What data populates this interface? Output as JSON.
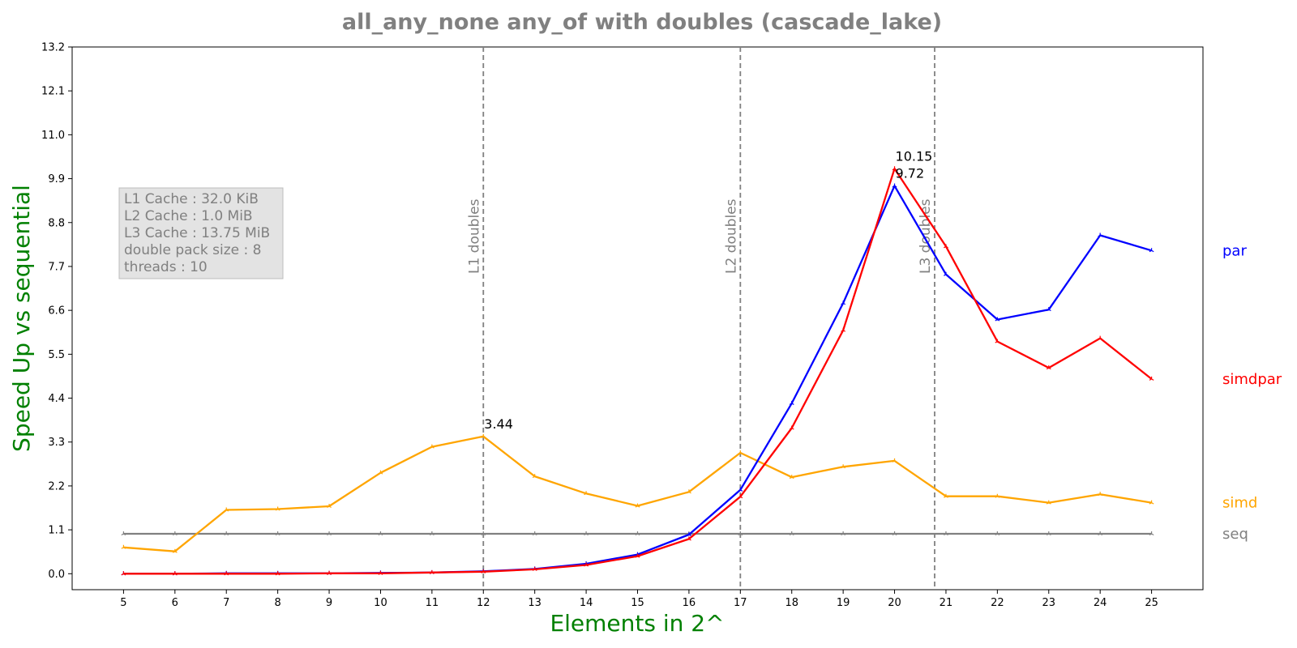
{
  "chart_data": {
    "type": "line",
    "title": "all_any_none any_of with doubles  (cascade_lake)",
    "xlabel": "Elements in 2^",
    "ylabel": "Speed Up vs sequential",
    "x": [
      5,
      6,
      7,
      8,
      9,
      10,
      11,
      12,
      13,
      14,
      15,
      16,
      17,
      18,
      19,
      20,
      21,
      22,
      23,
      24,
      25
    ],
    "xlim": [
      4,
      26
    ],
    "ylim": [
      -0.4,
      13.2
    ],
    "yticks": [
      "0.0",
      "1.1",
      "2.2",
      "3.3",
      "4.4",
      "5.5",
      "6.6",
      "7.7",
      "8.8",
      "9.9",
      "11.0",
      "12.1",
      "13.2"
    ],
    "xticks": [
      "5",
      "6",
      "7",
      "8",
      "9",
      "10",
      "11",
      "12",
      "13",
      "14",
      "15",
      "16",
      "17",
      "18",
      "19",
      "20",
      "21",
      "22",
      "23",
      "24",
      "25"
    ],
    "grid": false,
    "series": [
      {
        "name": "seq",
        "color": "#808080",
        "values": [
          1.0,
          1.0,
          1.0,
          1.0,
          1.0,
          1.0,
          1.0,
          1.0,
          1.0,
          1.0,
          1.0,
          1.0,
          1.0,
          1.0,
          1.0,
          1.0,
          1.0,
          1.0,
          1.0,
          1.0,
          1.0
        ]
      },
      {
        "name": "simd",
        "color": "#ffa500",
        "values": [
          0.66,
          0.56,
          1.6,
          1.62,
          1.69,
          2.53,
          3.18,
          3.44,
          2.44,
          2.01,
          1.7,
          2.05,
          3.03,
          2.42,
          2.68,
          2.83,
          1.94,
          1.94,
          1.78,
          1.99,
          1.78
        ]
      },
      {
        "name": "par",
        "color": "#0000ff",
        "values": [
          0.0,
          0.0,
          0.01,
          0.01,
          0.01,
          0.02,
          0.03,
          0.06,
          0.12,
          0.25,
          0.48,
          0.98,
          2.1,
          4.27,
          6.78,
          9.72,
          7.5,
          6.37,
          6.62,
          8.48,
          8.1
        ]
      },
      {
        "name": "simdpar",
        "color": "#ff0000",
        "values": [
          0.0,
          0.0,
          0.0,
          0.0,
          0.01,
          0.01,
          0.03,
          0.05,
          0.11,
          0.22,
          0.44,
          0.87,
          1.93,
          3.65,
          6.1,
          10.15,
          8.2,
          5.82,
          5.16,
          5.9,
          4.88
        ]
      }
    ],
    "vlines": [
      {
        "x": 12.0,
        "label": "L1 doubles"
      },
      {
        "x": 17.0,
        "label": "L2 doubles"
      },
      {
        "x": 20.78,
        "label": "L3 doubles"
      }
    ],
    "annotations": [
      {
        "x": 12,
        "y": 3.44,
        "text": "3.44"
      },
      {
        "x": 20,
        "y": 10.15,
        "text": "10.15"
      },
      {
        "x": 20,
        "y": 9.72,
        "text": "9.72"
      }
    ],
    "info_box": [
      "L1 Cache : 32.0 KiB",
      "L2 Cache : 1.0 MiB",
      "L3 Cache : 13.75 MiB",
      "double pack size : 8",
      "threads : 10"
    ],
    "info_box_color": "#e3e3e3",
    "title_color": "#808080",
    "axis_label_color": "#008000",
    "vline_color": "#808080"
  }
}
